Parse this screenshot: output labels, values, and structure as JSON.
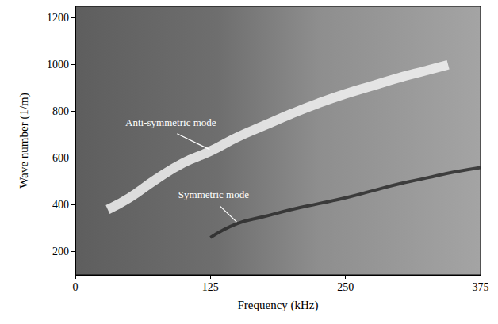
{
  "chart_data": {
    "type": "line",
    "x_label": "Frequency (kHz)",
    "y_label": "Wave number (1/m)",
    "xlim": [
      0,
      375
    ],
    "xticks": [
      0,
      125,
      250,
      375
    ],
    "ylim": [
      100,
      1250
    ],
    "yticks": [
      200,
      400,
      600,
      800,
      1000,
      1200
    ],
    "grid": false,
    "series": [
      {
        "color": "#f2f2f2",
        "x": [
          30,
          50,
          75,
          100,
          125,
          150,
          175,
          200,
          225,
          250,
          275,
          300,
          325,
          345
        ],
        "values": [
          380,
          430,
          510,
          580,
          630,
          690,
          740,
          790,
          835,
          875,
          910,
          945,
          975,
          1000
        ]
      },
      {
        "color": "#262626",
        "x": [
          125,
          150,
          175,
          200,
          225,
          250,
          275,
          300,
          325,
          350,
          375
        ],
        "values": [
          260,
          320,
          350,
          380,
          405,
          430,
          460,
          490,
          515,
          540,
          560
        ]
      }
    ],
    "annotations": [
      {
        "text": "Anti-symmetric mode",
        "x": 125,
        "y": 630
      },
      {
        "text": "Symmetric mode",
        "x": 150,
        "y": 320
      }
    ]
  }
}
